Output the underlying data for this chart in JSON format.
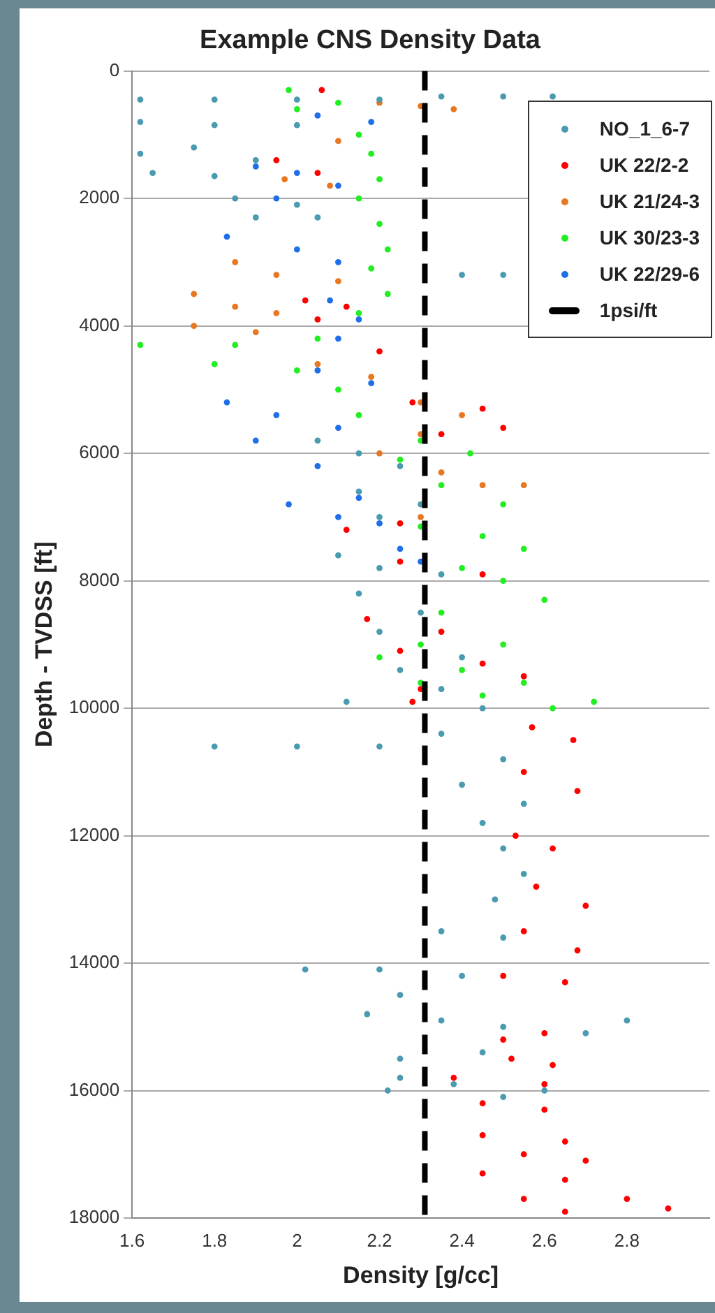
{
  "chart_data": {
    "type": "scatter",
    "title": "Example CNS Density Data",
    "xlabel": "Density [g/cc]",
    "ylabel": "Depth - TVDSS [ft]",
    "xlim": [
      1.6,
      3.0
    ],
    "xticks": [
      1.6,
      1.8,
      2,
      2.2,
      2.4,
      2.6,
      2.8
    ],
    "ylim": [
      18000,
      0
    ],
    "yticks": [
      0,
      2000,
      4000,
      6000,
      8000,
      10000,
      12000,
      14000,
      16000,
      18000
    ],
    "grid": "y",
    "legend": "top right",
    "marker": "circle",
    "series": [
      {
        "name": "NO_1_6-7",
        "color": "#4a9ab0",
        "x": [
          1.62,
          1.8,
          2.0,
          2.2,
          2.35,
          2.5,
          2.62,
          1.62,
          1.8,
          2.0,
          1.62,
          1.75,
          1.9,
          1.65,
          1.8,
          1.85,
          2.0,
          1.9,
          2.05,
          2.5,
          2.4,
          2.05,
          2.15,
          2.25,
          2.15,
          2.3,
          2.2,
          2.1,
          2.2,
          2.35,
          2.15,
          2.3,
          2.2,
          2.4,
          2.25,
          2.35,
          2.12,
          2.45,
          1.8,
          2.0,
          2.2,
          2.35,
          2.5,
          2.4,
          2.55,
          2.45,
          2.5,
          2.55,
          2.48,
          2.35,
          2.5,
          2.02,
          2.2,
          2.4,
          2.25,
          2.17,
          2.35,
          2.5,
          2.8,
          2.7,
          2.25,
          2.45,
          2.25,
          2.38,
          2.22,
          2.5,
          2.6
        ],
        "values": [
          450,
          450,
          450,
          450,
          400,
          400,
          400,
          800,
          850,
          850,
          1300,
          1200,
          1400,
          1600,
          1650,
          2000,
          2100,
          2300,
          2300,
          3200,
          3200,
          5800,
          6000,
          6200,
          6600,
          6800,
          7000,
          7600,
          7800,
          7900,
          8200,
          8500,
          8800,
          9200,
          9400,
          9700,
          9900,
          10000,
          10600,
          10600,
          10600,
          10400,
          10800,
          11200,
          11500,
          11800,
          12200,
          12600,
          13000,
          13500,
          13600,
          14100,
          14100,
          14200,
          14500,
          14800,
          14900,
          15000,
          14900,
          15100,
          15500,
          15400,
          15800,
          15900,
          16000,
          16100,
          16000
        ]
      },
      {
        "name": "UK 22/2-2",
        "color": "#ff0000",
        "x": [
          2.06,
          1.95,
          2.05,
          2.02,
          2.12,
          2.05,
          2.2,
          2.28,
          2.45,
          2.35,
          2.5,
          2.12,
          2.25,
          2.25,
          2.45,
          2.17,
          2.35,
          2.25,
          2.45,
          2.3,
          2.55,
          2.28,
          2.57,
          2.67,
          2.55,
          2.68,
          2.53,
          2.62,
          2.58,
          2.7,
          2.55,
          2.68,
          2.5,
          2.65,
          2.5,
          2.6,
          2.52,
          2.62,
          2.38,
          2.6,
          2.45,
          2.6,
          2.45,
          2.65,
          2.55,
          2.7,
          2.45,
          2.65,
          2.55,
          2.8,
          2.65,
          2.9
        ],
        "values": [
          300,
          1400,
          1600,
          3600,
          3700,
          3900,
          4400,
          5200,
          5300,
          5700,
          5600,
          7200,
          7100,
          7700,
          7900,
          8600,
          8800,
          9100,
          9300,
          9700,
          9500,
          9900,
          10300,
          10500,
          11000,
          11300,
          12000,
          12200,
          12800,
          13100,
          13500,
          13800,
          14200,
          14300,
          15200,
          15100,
          15500,
          15600,
          15800,
          15900,
          16200,
          16300,
          16700,
          16800,
          17000,
          17100,
          17300,
          17400,
          17700,
          17700,
          17900,
          17850
        ]
      },
      {
        "name": "UK 21/24-3",
        "color": "#e87722",
        "x": [
          2.2,
          2.3,
          2.38,
          2.1,
          1.97,
          2.08,
          1.85,
          1.95,
          2.1,
          1.75,
          1.85,
          1.95,
          1.75,
          1.9,
          2.05,
          2.18,
          2.3,
          2.4,
          2.3,
          2.2,
          2.35,
          2.45,
          2.55,
          2.3
        ],
        "values": [
          500,
          550,
          600,
          1100,
          1700,
          1800,
          3000,
          3200,
          3300,
          3500,
          3700,
          3800,
          4000,
          4100,
          4600,
          4800,
          5200,
          5400,
          5700,
          6000,
          6300,
          6500,
          6500,
          7000
        ]
      },
      {
        "name": "UK 30/23-3",
        "color": "#22ee22",
        "x": [
          1.98,
          2.1,
          2.0,
          2.15,
          2.18,
          2.2,
          2.15,
          2.2,
          2.22,
          2.18,
          2.22,
          2.15,
          1.62,
          1.85,
          2.05,
          1.8,
          2.0,
          2.1,
          2.15,
          2.3,
          2.25,
          2.42,
          2.35,
          2.5,
          2.3,
          2.45,
          2.55,
          2.4,
          2.5,
          2.6,
          2.35,
          2.3,
          2.5,
          2.2,
          2.4,
          2.3,
          2.55,
          2.45,
          2.62,
          2.72
        ],
        "values": [
          300,
          500,
          600,
          1000,
          1300,
          1700,
          2000,
          2400,
          2800,
          3100,
          3500,
          3800,
          4300,
          4300,
          4200,
          4600,
          4700,
          5000,
          5400,
          5800,
          6100,
          6000,
          6500,
          6800,
          7150,
          7300,
          7500,
          7800,
          8000,
          8300,
          8500,
          9000,
          9000,
          9200,
          9400,
          9600,
          9600,
          9800,
          10000,
          9900
        ]
      },
      {
        "name": "UK 22/29-6",
        "color": "#1f6fe8",
        "x": [
          2.05,
          2.18,
          1.9,
          2.0,
          1.95,
          2.1,
          1.83,
          2.0,
          2.1,
          2.08,
          2.15,
          2.1,
          2.05,
          2.18,
          1.83,
          1.95,
          2.1,
          1.9,
          2.05,
          1.98,
          2.15,
          2.2,
          2.1,
          2.25,
          2.3
        ],
        "values": [
          700,
          800,
          1500,
          1600,
          2000,
          1800,
          2600,
          2800,
          3000,
          3600,
          3900,
          4200,
          4700,
          4900,
          5200,
          5400,
          5600,
          5800,
          6200,
          6800,
          6700,
          7100,
          7000,
          7500,
          7700
        ]
      },
      {
        "name": "1psi/ft",
        "type": "line",
        "color": "#000000",
        "line_style": "dashed",
        "marker": "none",
        "x": [
          2.31,
          2.31
        ],
        "values": [
          0,
          18000
        ]
      }
    ]
  }
}
